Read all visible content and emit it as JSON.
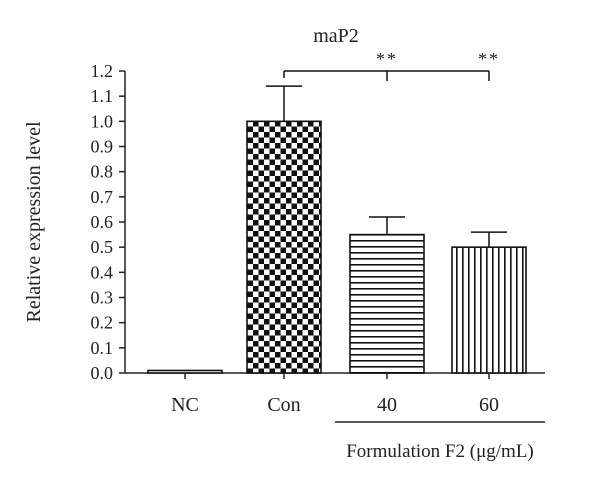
{
  "chart_data": {
    "type": "bar",
    "title": "maP2",
    "ylabel": "Relative expression level",
    "xlabel": "",
    "ylim": [
      0,
      1.2
    ],
    "yticks": [
      "0.0",
      "0.1",
      "0.2",
      "0.3",
      "0.4",
      "0.5",
      "0.6",
      "0.7",
      "0.8",
      "0.9",
      "1.0",
      "1.1",
      "1.2"
    ],
    "categories": [
      "NC",
      "Con",
      "40",
      "60"
    ],
    "values": [
      0.01,
      1.0,
      0.55,
      0.5
    ],
    "errors": [
      0.0,
      0.14,
      0.07,
      0.06
    ],
    "patterns": [
      "none",
      "checkerboard",
      "horizontal-lines",
      "vertical-lines"
    ],
    "group_label": "Formulation F2 (μg/mL)",
    "significance": [
      {
        "from": "Con",
        "to": "40",
        "label": "**"
      },
      {
        "from": "Con",
        "to": "60",
        "label": "**"
      }
    ],
    "grid": false
  }
}
